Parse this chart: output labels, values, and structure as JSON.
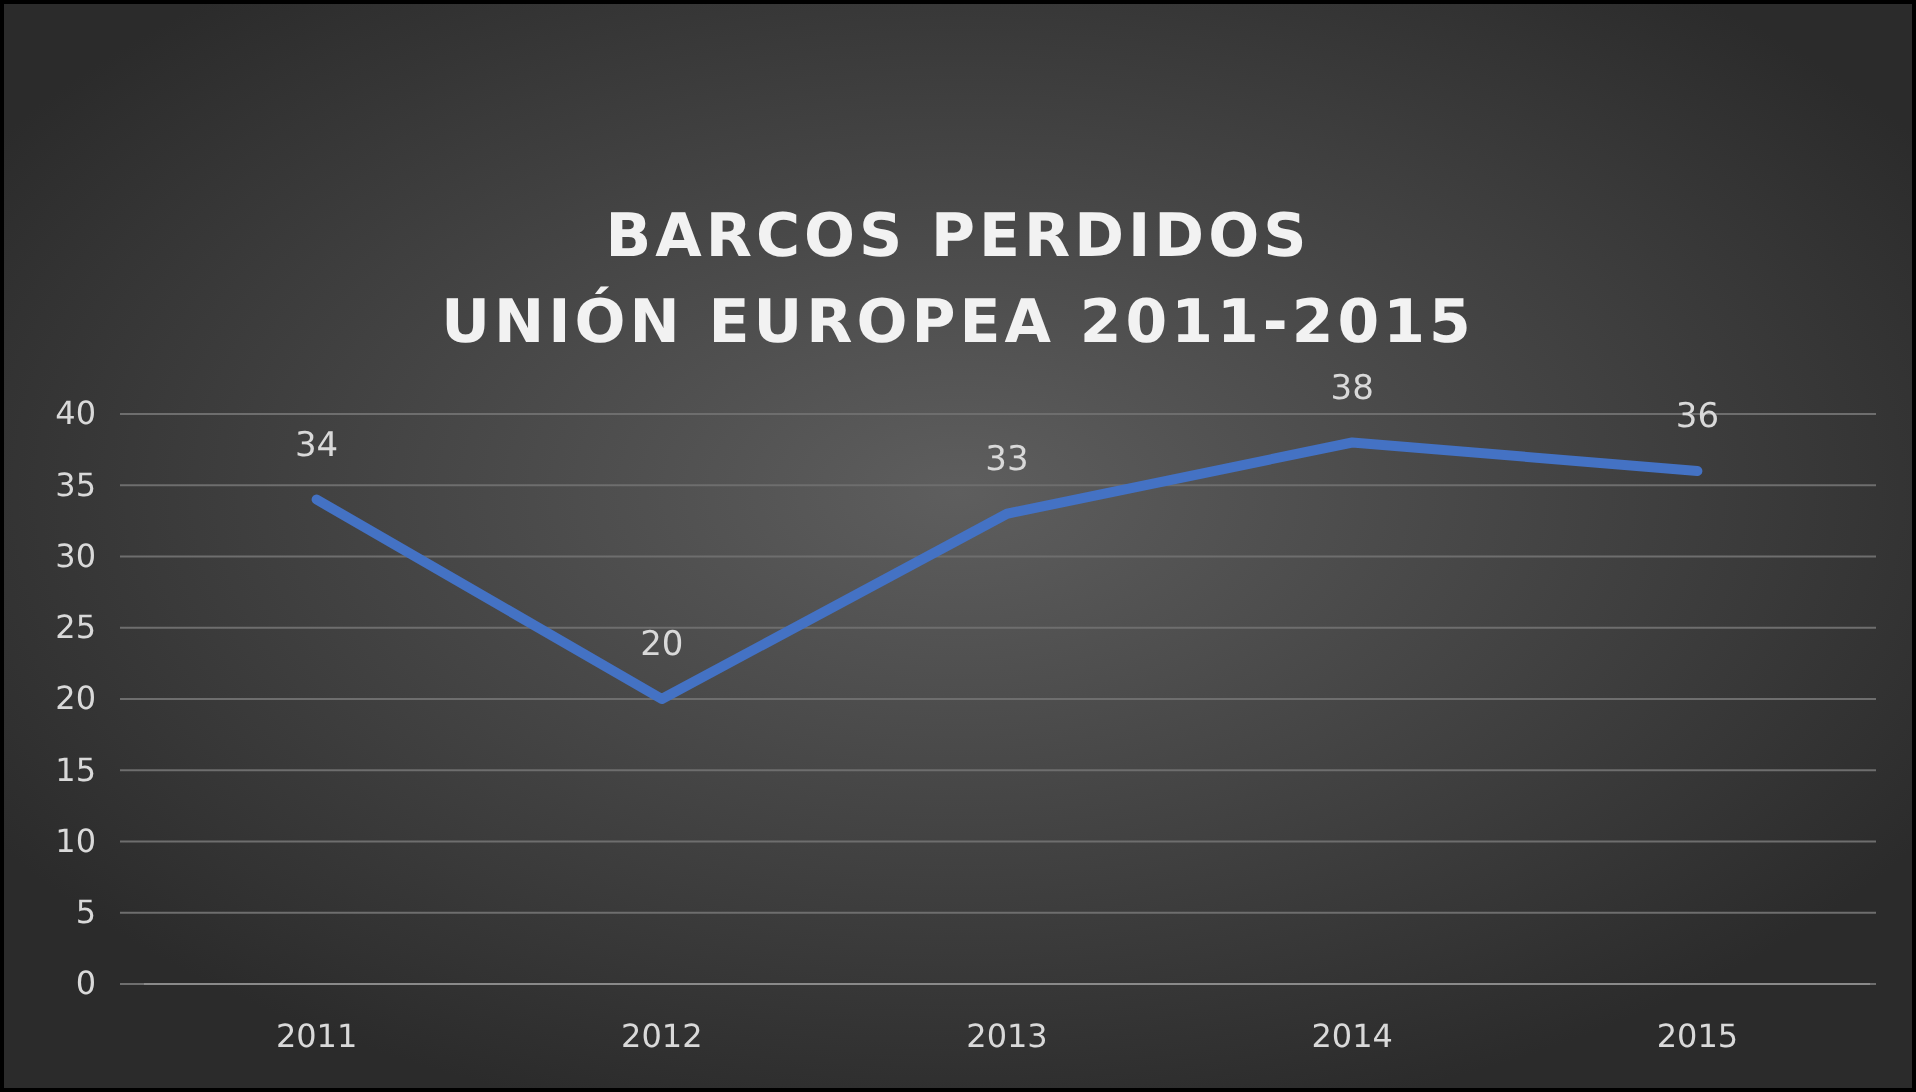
{
  "chart_data": {
    "type": "line",
    "title": "BARCOS PERDIDOS\nUNIÓN EUROPEA 2011-2015",
    "categories": [
      "2011",
      "2012",
      "2013",
      "2014",
      "2015"
    ],
    "series": [
      {
        "color": "#4472c4",
        "values": [
          34,
          20,
          33,
          38,
          36
        ]
      }
    ],
    "ylim": [
      0,
      40
    ],
    "yticks": [
      0,
      5,
      10,
      15,
      20,
      25,
      30,
      35,
      40
    ],
    "grid": "y",
    "data_labels": true,
    "marker": "none",
    "line_style": "solid"
  }
}
